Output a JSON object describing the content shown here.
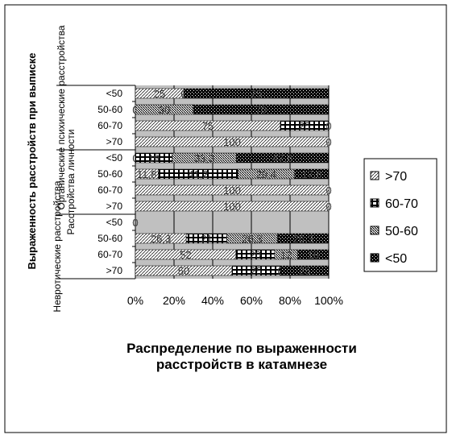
{
  "chart_data": {
    "type": "stacked-bar-horizontal",
    "x_label": "Распределение по выраженности расстройств в катамнезе",
    "y_label": "Выраженность расстройств при выписке",
    "groups": [
      {
        "name": "Органические психические расстройства",
        "categories": [
          "<50",
          "50-60",
          "60-70",
          ">70"
        ]
      },
      {
        "name": "Расстройства личности",
        "categories": [
          "<50",
          "50-60",
          "60-70",
          ">70"
        ]
      },
      {
        "name": "Невротические расстройства",
        "categories": [
          "<50",
          "50-60",
          "60-70",
          ">70"
        ]
      }
    ],
    "series": [
      {
        "name": ">70",
        "values": [
          25,
          0,
          75,
          100,
          0,
          11.8,
          100,
          100,
          0,
          26.3,
          52,
          50
        ],
        "value_labels": [
          "25",
          "0",
          "75",
          "100",
          "0",
          "11,8",
          "100",
          "100",
          "0",
          "26,3",
          "52",
          "50"
        ]
      },
      {
        "name": "60-70",
        "values": [
          0,
          0,
          25,
          0,
          19,
          41.2,
          0,
          0,
          0,
          21,
          20,
          25
        ],
        "value_labels": [
          "0",
          "0",
          "25",
          "0",
          "19",
          "41,2",
          "0",
          "0",
          "0",
          "21",
          "20",
          "25"
        ]
      },
      {
        "name": "50-60",
        "values": [
          0,
          30,
          0,
          0,
          33.3,
          29.4,
          0,
          0,
          0,
          26.3,
          12,
          0
        ],
        "value_labels": [
          "0",
          "30",
          "0",
          "0",
          "33,3",
          "29,4",
          "0",
          "0",
          "0",
          "26,3",
          "12",
          "0"
        ]
      },
      {
        "name": "<50",
        "values": [
          75,
          70,
          0,
          0,
          47.6,
          17.6,
          0,
          0,
          0,
          26.3,
          16,
          25
        ],
        "value_labels": [
          "75",
          "70",
          "0",
          "0",
          "47,6",
          "17,6",
          "0",
          "0",
          "0",
          "26,3",
          "16",
          "25"
        ]
      }
    ],
    "xlim": [
      0,
      100
    ],
    "xticks": [
      {
        "value": 0,
        "label": "0%"
      },
      {
        "value": 20,
        "label": "20%"
      },
      {
        "value": 40,
        "label": "40%"
      },
      {
        "value": 60,
        "label": "60%"
      },
      {
        "value": 80,
        "label": "80%"
      },
      {
        "value": 100,
        "label": "100%"
      }
    ],
    "grid": true
  }
}
